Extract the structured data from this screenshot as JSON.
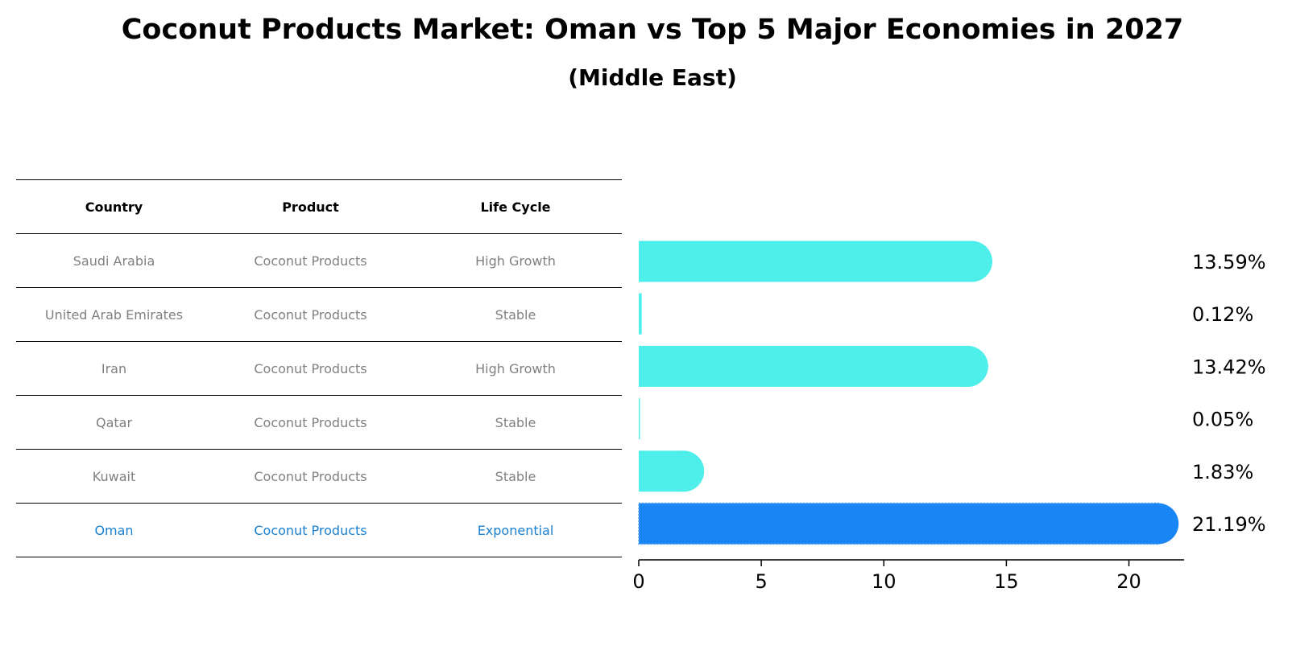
{
  "title": "Coconut Products Market: Oman vs Top 5 Major Economies in 2027",
  "subtitle": "(Middle East)",
  "table": {
    "headers": [
      "Country",
      "Product",
      "Life Cycle"
    ],
    "rows": [
      {
        "country": "Saudi Arabia",
        "product": "Coconut Products",
        "life_cycle": "High Growth"
      },
      {
        "country": "United Arab Emirates",
        "product": "Coconut Products",
        "life_cycle": "Stable"
      },
      {
        "country": "Iran",
        "product": "Coconut Products",
        "life_cycle": "High Growth"
      },
      {
        "country": "Qatar",
        "product": "Coconut Products",
        "life_cycle": "Stable"
      },
      {
        "country": "Kuwait",
        "product": "Coconut Products",
        "life_cycle": "Stable"
      },
      {
        "country": "Oman",
        "product": "Coconut Products",
        "life_cycle": "Exponential"
      }
    ]
  },
  "chart_data": {
    "type": "bar",
    "orientation": "horizontal",
    "categories": [
      "Saudi Arabia",
      "United Arab Emirates",
      "Iran",
      "Qatar",
      "Kuwait",
      "Oman"
    ],
    "values": [
      13.59,
      0.12,
      13.42,
      0.05,
      1.83,
      21.19
    ],
    "value_labels": [
      "13.59%",
      "0.12%",
      "13.42%",
      "0.05%",
      "1.83%",
      "21.19%"
    ],
    "highlight": "Oman",
    "xlim": [
      0,
      22.25
    ],
    "xticks": [
      0,
      5,
      10,
      15,
      20
    ],
    "grid": false,
    "colors": {
      "bar": "#4eeeea",
      "highlight": "#1a85f5",
      "highlight_text": "#1a80d0",
      "muted_text": "#808080"
    }
  }
}
